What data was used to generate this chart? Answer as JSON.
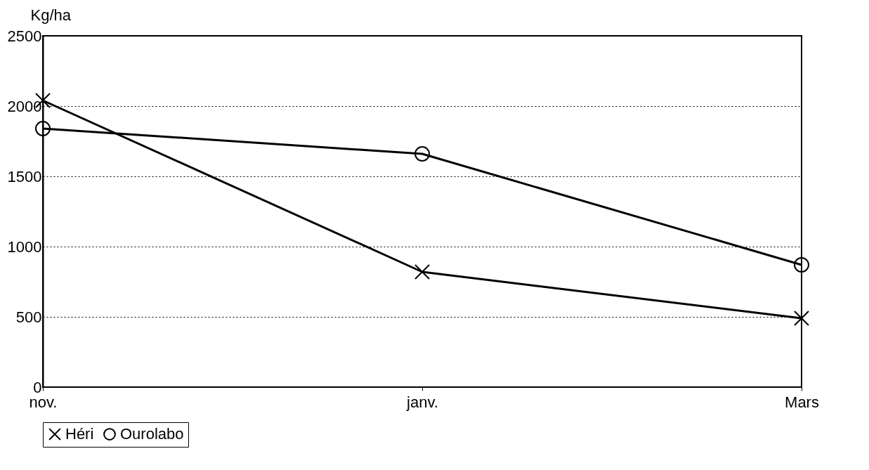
{
  "chart_data": {
    "type": "line",
    "ylabel": "Kg/ha",
    "categories": [
      "nov.",
      "janv.",
      "Mars"
    ],
    "series": [
      {
        "name": "Héri",
        "color": "#000000",
        "marker": "cross",
        "values": [
          2040,
          820,
          490
        ]
      },
      {
        "name": "Ourolabo",
        "color": "#000000",
        "marker": "circle",
        "values": [
          1840,
          1660,
          870
        ]
      }
    ],
    "ylim": [
      0,
      2500
    ],
    "yticks": [
      0,
      500,
      1000,
      1500,
      2000,
      2500
    ],
    "grid": "y",
    "legend": "bottom left",
    "line_style": "solid"
  }
}
